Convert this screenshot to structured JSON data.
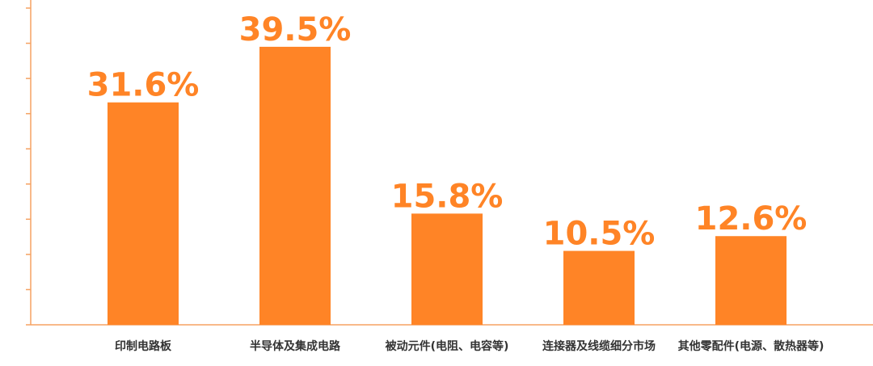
{
  "chart_data": {
    "type": "bar",
    "categories": [
      "印制电路板",
      "半导体及集成电路",
      "被动元件(电阻、电容等)",
      "连接器及线缆细分市场",
      "其他零配件(电源、散热器等)"
    ],
    "values": [
      31.6,
      39.5,
      15.8,
      10.5,
      12.6
    ],
    "value_labels": [
      "31.6%",
      "39.5%",
      "15.8%",
      "10.5%",
      "12.6%"
    ],
    "color": "#ff8426",
    "ylim": [
      0,
      45
    ],
    "yticks": [
      0,
      5,
      10,
      15,
      20,
      25,
      30,
      35,
      40,
      45
    ]
  }
}
